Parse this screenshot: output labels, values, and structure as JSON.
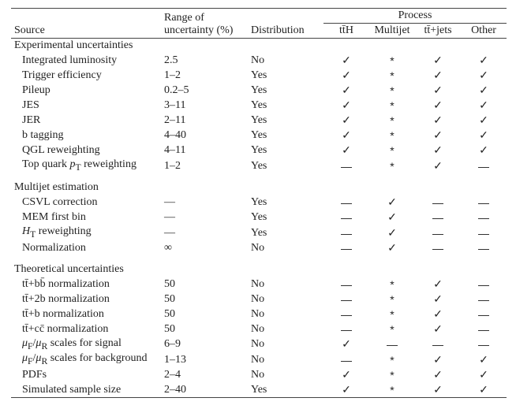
{
  "header": {
    "source": "Source",
    "range_line1": "Range of",
    "range_line2": "uncertainty (%)",
    "distribution": "Distribution",
    "process": "Process",
    "process_cols": [
      "tt̄H",
      "Multijet",
      "tt̄+jets",
      "Other"
    ]
  },
  "symbols": {
    "check": "✓",
    "star": "*",
    "dash": "—"
  },
  "sections": [
    {
      "title": "Experimental uncertainties",
      "gap_before": false,
      "rows": [
        {
          "src": "Integrated luminosity",
          "range": "2.5",
          "dist": "No",
          "proc": [
            "check",
            "star",
            "check",
            "check"
          ]
        },
        {
          "src": "Trigger efficiency",
          "range": "1–2",
          "dist": "Yes",
          "proc": [
            "check",
            "star",
            "check",
            "check"
          ]
        },
        {
          "src": "Pileup",
          "range": "0.2–5",
          "dist": "Yes",
          "proc": [
            "check",
            "star",
            "check",
            "check"
          ]
        },
        {
          "src": "JES",
          "range": "3–11",
          "dist": "Yes",
          "proc": [
            "check",
            "star",
            "check",
            "check"
          ]
        },
        {
          "src": "JER",
          "range": "2–11",
          "dist": "Yes",
          "proc": [
            "check",
            "star",
            "check",
            "check"
          ]
        },
        {
          "src": "b tagging",
          "range": "4–40",
          "dist": "Yes",
          "proc": [
            "check",
            "star",
            "check",
            "check"
          ]
        },
        {
          "src": "QGL reweighting",
          "range": "4–11",
          "dist": "Yes",
          "proc": [
            "check",
            "star",
            "check",
            "check"
          ]
        },
        {
          "src_html": "Top quark <i>p</i><sub>T</sub> reweighting",
          "range": "1–2",
          "dist": "Yes",
          "proc": [
            "dash",
            "star",
            "check",
            "dash"
          ]
        }
      ]
    },
    {
      "title": "Multijet estimation",
      "gap_before": true,
      "rows": [
        {
          "src": "CSVL correction",
          "range": "—",
          "dist": "Yes",
          "proc": [
            "dash",
            "check",
            "dash",
            "dash"
          ]
        },
        {
          "src": "MEM first bin",
          "range": "—",
          "dist": "Yes",
          "proc": [
            "dash",
            "check",
            "dash",
            "dash"
          ]
        },
        {
          "src_html": "<i>H</i><sub>T</sub> reweighting",
          "range": "—",
          "dist": "Yes",
          "proc": [
            "dash",
            "check",
            "dash",
            "dash"
          ]
        },
        {
          "src": "Normalization",
          "range": "∞",
          "dist": "No",
          "proc": [
            "dash",
            "check",
            "dash",
            "dash"
          ]
        }
      ]
    },
    {
      "title": "Theoretical uncertainties",
      "gap_before": true,
      "rows": [
        {
          "src_html": "tt̄+bb̄ normalization",
          "range": "50",
          "dist": "No",
          "proc": [
            "dash",
            "star",
            "check",
            "dash"
          ]
        },
        {
          "src_html": "tt̄+2b normalization",
          "range": "50",
          "dist": "No",
          "proc": [
            "dash",
            "star",
            "check",
            "dash"
          ]
        },
        {
          "src_html": "tt̄+b normalization",
          "range": "50",
          "dist": "No",
          "proc": [
            "dash",
            "star",
            "check",
            "dash"
          ]
        },
        {
          "src_html": "tt̄+cc̄ normalization",
          "range": "50",
          "dist": "No",
          "proc": [
            "dash",
            "star",
            "check",
            "dash"
          ]
        },
        {
          "src_html": "<i>μ</i><sub>F</sub>/<i>μ</i><sub>R</sub> scales for signal",
          "range": "6–9",
          "dist": "No",
          "proc": [
            "check",
            "dash",
            "dash",
            "dash"
          ]
        },
        {
          "src_html": "<i>μ</i><sub>F</sub>/<i>μ</i><sub>R</sub> scales for background",
          "range": "1–13",
          "dist": "No",
          "proc": [
            "dash",
            "star",
            "check",
            "check"
          ]
        },
        {
          "src": "PDFs",
          "range": "2–4",
          "dist": "No",
          "proc": [
            "check",
            "star",
            "check",
            "check"
          ]
        },
        {
          "src": "Simulated sample size",
          "range": "2–40",
          "dist": "Yes",
          "proc": [
            "check",
            "star",
            "check",
            "check"
          ]
        }
      ]
    }
  ]
}
